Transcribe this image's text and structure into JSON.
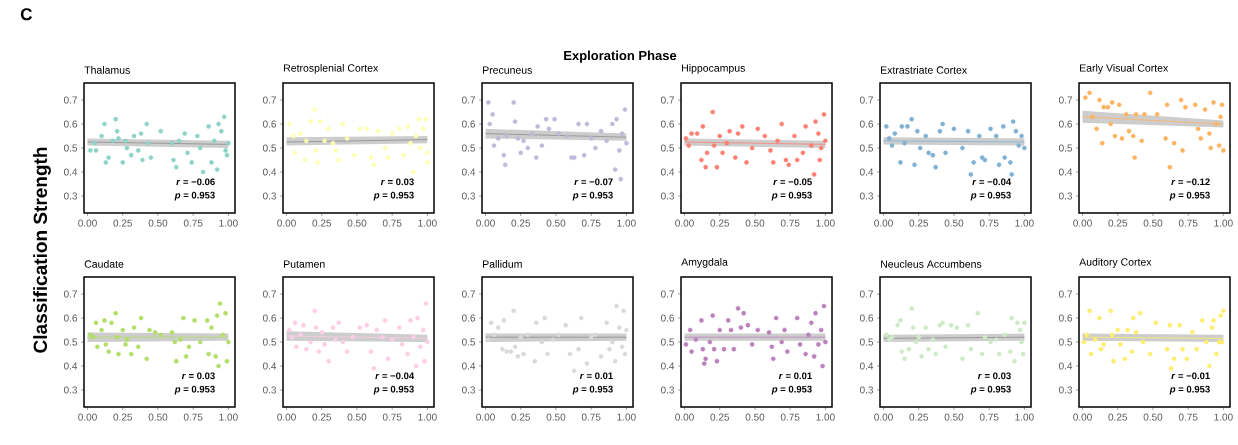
{
  "chart_data": [
    {
      "type": "scatter",
      "title": "Thalamus",
      "ylabel": "Classification Strength",
      "marker": "circle",
      "xlim": [
        -0.025,
        1.047
      ],
      "ylim": [
        0.229,
        0.771
      ],
      "xticks": [
        {
          "value": 0,
          "label": "0.00"
        },
        {
          "value": 0.25,
          "label": "0.25"
        },
        {
          "value": 0.5,
          "label": "0.50"
        },
        {
          "value": 0.75,
          "label": "0.75"
        },
        {
          "value": 1,
          "label": "1.00"
        }
      ],
      "yticks": [
        0.3,
        0.4,
        0.5,
        0.6,
        0.7
      ],
      "annotations": [
        "C",
        "Exploration Phase",
        "*r* = −0.06",
        "*p* = 0.953"
      ],
      "series": [
        {
          "color": "#8dd3c7",
          "x": [
            0.02,
            0.05,
            0.06,
            0.1,
            0.12,
            0.13,
            0.15,
            0.18,
            0.2,
            0.21,
            0.22,
            0.25,
            0.27,
            0.28,
            0.31,
            0.33,
            0.36,
            0.38,
            0.39,
            0.42,
            0.43,
            0.45,
            0.52,
            0.6,
            0.61,
            0.63,
            0.65,
            0.69,
            0.71,
            0.74,
            0.78,
            0.8,
            0.82,
            0.86,
            0.88,
            0.9,
            0.92,
            0.93,
            0.95,
            0.97,
            0.98,
            0.99,
            1.0
          ],
          "values": [
            0.49,
            0.52,
            0.49,
            0.55,
            0.6,
            0.44,
            0.46,
            0.53,
            0.62,
            0.57,
            0.54,
            0.44,
            0.53,
            0.5,
            0.47,
            0.55,
            0.49,
            0.56,
            0.45,
            0.6,
            0.52,
            0.46,
            0.57,
            0.52,
            0.45,
            0.42,
            0.53,
            0.56,
            0.48,
            0.44,
            0.55,
            0.5,
            0.4,
            0.59,
            0.44,
            0.53,
            0.41,
            0.6,
            0.57,
            0.63,
            0.49,
            0.47,
            0.52
          ]
        },
        {
          "type": "line",
          "marker": "none",
          "color": "#8c8c8c",
          "x": [
            0,
            1
          ],
          "values": [
            0.525,
            0.515
          ],
          "lower": [
            0.51,
            0.5
          ],
          "upper": [
            0.54,
            0.53
          ]
        }
      ]
    },
    {
      "type": "scatter",
      "title": "Retrosplenial Cortex",
      "marker": "circle",
      "xlim": [
        -0.025,
        1.047
      ],
      "ylim": [
        0.229,
        0.771
      ],
      "xticks": [
        {
          "value": 0,
          "label": "0.00"
        },
        {
          "value": 0.25,
          "label": "0.25"
        },
        {
          "value": 0.5,
          "label": "0.50"
        },
        {
          "value": 0.75,
          "label": "0.75"
        },
        {
          "value": 1,
          "label": "1.00"
        }
      ],
      "yticks": [
        0.3,
        0.4,
        0.5,
        0.6,
        0.7
      ],
      "annotations": [
        "*r* = 0.03",
        "*p* = 0.953"
      ],
      "series": [
        {
          "color": "#ffffb3",
          "x": [
            0.02,
            0.05,
            0.06,
            0.1,
            0.13,
            0.14,
            0.17,
            0.2,
            0.21,
            0.22,
            0.24,
            0.27,
            0.3,
            0.33,
            0.35,
            0.37,
            0.4,
            0.43,
            0.48,
            0.52,
            0.57,
            0.6,
            0.62,
            0.65,
            0.7,
            0.72,
            0.75,
            0.8,
            0.83,
            0.86,
            0.88,
            0.9,
            0.92,
            0.94,
            0.95,
            0.97,
            0.99,
            1.0,
            1.0
          ],
          "values": [
            0.6,
            0.55,
            0.48,
            0.56,
            0.45,
            0.53,
            0.61,
            0.66,
            0.49,
            0.44,
            0.61,
            0.53,
            0.58,
            0.52,
            0.49,
            0.45,
            0.6,
            0.54,
            0.47,
            0.58,
            0.58,
            0.46,
            0.43,
            0.57,
            0.5,
            0.46,
            0.56,
            0.58,
            0.47,
            0.59,
            0.52,
            0.4,
            0.55,
            0.62,
            0.5,
            0.58,
            0.62,
            0.48,
            0.44
          ]
        },
        {
          "type": "line",
          "marker": "none",
          "color": "#8c8c8c",
          "x": [
            0,
            1
          ],
          "values": [
            0.525,
            0.535
          ],
          "lower": [
            0.51,
            0.52
          ],
          "upper": [
            0.545,
            0.55
          ]
        }
      ]
    },
    {
      "type": "scatter",
      "title": "Precuneus",
      "marker": "circle",
      "xlim": [
        -0.025,
        1.047
      ],
      "ylim": [
        0.229,
        0.771
      ],
      "xticks": [
        {
          "value": 0,
          "label": "0.00"
        },
        {
          "value": 0.25,
          "label": "0.25"
        },
        {
          "value": 0.5,
          "label": "0.50"
        },
        {
          "value": 0.75,
          "label": "0.75"
        },
        {
          "value": 1,
          "label": "1.00"
        }
      ],
      "yticks": [
        0.3,
        0.4,
        0.5,
        0.6,
        0.7
      ],
      "annotations": [
        "*r* = −0.07",
        "*p* = 0.953"
      ],
      "series": [
        {
          "color": "#bebada",
          "x": [
            0.02,
            0.03,
            0.05,
            0.06,
            0.09,
            0.13,
            0.14,
            0.15,
            0.2,
            0.21,
            0.23,
            0.25,
            0.27,
            0.3,
            0.33,
            0.36,
            0.37,
            0.4,
            0.43,
            0.45,
            0.49,
            0.52,
            0.58,
            0.61,
            0.63,
            0.66,
            0.7,
            0.72,
            0.75,
            0.78,
            0.82,
            0.86,
            0.9,
            0.92,
            0.93,
            0.95,
            0.97,
            0.99,
            1.0,
            0.96
          ],
          "values": [
            0.69,
            0.6,
            0.64,
            0.51,
            0.54,
            0.47,
            0.43,
            0.55,
            0.69,
            0.61,
            0.54,
            0.48,
            0.53,
            0.5,
            0.56,
            0.46,
            0.59,
            0.51,
            0.62,
            0.58,
            0.62,
            0.56,
            0.55,
            0.46,
            0.46,
            0.6,
            0.47,
            0.6,
            0.54,
            0.5,
            0.57,
            0.53,
            0.6,
            0.41,
            0.62,
            0.49,
            0.56,
            0.66,
            0.52,
            0.37
          ]
        },
        {
          "type": "line",
          "marker": "none",
          "color": "#8c8c8c",
          "x": [
            0,
            1
          ],
          "values": [
            0.56,
            0.545
          ],
          "lower": [
            0.54,
            0.53
          ],
          "upper": [
            0.58,
            0.56
          ]
        }
      ]
    },
    {
      "type": "scatter",
      "title": "Hippocampus",
      "marker": "circle",
      "xlim": [
        -0.025,
        1.047
      ],
      "ylim": [
        0.229,
        0.771
      ],
      "xticks": [
        {
          "value": 0,
          "label": "0.00"
        },
        {
          "value": 0.25,
          "label": "0.25"
        },
        {
          "value": 0.5,
          "label": "0.50"
        },
        {
          "value": 0.75,
          "label": "0.75"
        },
        {
          "value": 1,
          "label": "1.00"
        }
      ],
      "yticks": [
        0.3,
        0.4,
        0.5,
        0.6,
        0.7
      ],
      "annotations": [
        "*r* = −0.05",
        "*p* = 0.953"
      ],
      "series": [
        {
          "color": "#fb8072",
          "x": [
            0.01,
            0.03,
            0.05,
            0.09,
            0.12,
            0.13,
            0.15,
            0.16,
            0.2,
            0.21,
            0.23,
            0.25,
            0.27,
            0.3,
            0.32,
            0.36,
            0.38,
            0.41,
            0.44,
            0.48,
            0.52,
            0.57,
            0.61,
            0.63,
            0.66,
            0.69,
            0.72,
            0.74,
            0.78,
            0.8,
            0.84,
            0.86,
            0.9,
            0.92,
            0.93,
            0.95,
            0.97,
            0.99,
            1.0,
            0.96
          ],
          "values": [
            0.54,
            0.51,
            0.56,
            0.56,
            0.45,
            0.59,
            0.42,
            0.48,
            0.65,
            0.51,
            0.42,
            0.55,
            0.48,
            0.52,
            0.57,
            0.46,
            0.56,
            0.59,
            0.44,
            0.5,
            0.58,
            0.55,
            0.49,
            0.44,
            0.53,
            0.6,
            0.45,
            0.43,
            0.55,
            0.45,
            0.48,
            0.59,
            0.51,
            0.39,
            0.61,
            0.56,
            0.5,
            0.64,
            0.53,
            0.45
          ]
        },
        {
          "type": "line",
          "marker": "none",
          "color": "#fb8072",
          "x": [
            0,
            1
          ],
          "values": [
            0.525,
            0.515
          ],
          "lower": [
            0.51,
            0.5
          ],
          "upper": [
            0.54,
            0.53
          ]
        }
      ]
    },
    {
      "type": "scatter",
      "title": "Extrastriate Cortex",
      "marker": "circle",
      "xlim": [
        -0.025,
        1.047
      ],
      "ylim": [
        0.229,
        0.771
      ],
      "xticks": [
        {
          "value": 0,
          "label": "0.00"
        },
        {
          "value": 0.25,
          "label": "0.25"
        },
        {
          "value": 0.5,
          "label": "0.50"
        },
        {
          "value": 0.75,
          "label": "0.75"
        },
        {
          "value": 1,
          "label": "1.00"
        }
      ],
      "yticks": [
        0.3,
        0.4,
        0.5,
        0.6,
        0.7
      ],
      "annotations": [
        "*r* = −0.04",
        "*p* = 0.953"
      ],
      "series": [
        {
          "color": "#80b1d3",
          "x": [
            0.02,
            0.04,
            0.06,
            0.08,
            0.12,
            0.13,
            0.15,
            0.17,
            0.2,
            0.22,
            0.24,
            0.26,
            0.3,
            0.32,
            0.35,
            0.37,
            0.4,
            0.42,
            0.44,
            0.5,
            0.56,
            0.6,
            0.62,
            0.64,
            0.68,
            0.7,
            0.72,
            0.76,
            0.8,
            0.82,
            0.85,
            0.86,
            0.9,
            0.91,
            0.92,
            0.94,
            0.96,
            0.98,
            1.0
          ],
          "values": [
            0.59,
            0.54,
            0.51,
            0.56,
            0.44,
            0.59,
            0.52,
            0.59,
            0.62,
            0.43,
            0.57,
            0.5,
            0.55,
            0.48,
            0.47,
            0.42,
            0.57,
            0.6,
            0.48,
            0.58,
            0.5,
            0.57,
            0.39,
            0.44,
            0.55,
            0.46,
            0.45,
            0.58,
            0.55,
            0.43,
            0.59,
            0.46,
            0.44,
            0.39,
            0.61,
            0.57,
            0.51,
            0.55,
            0.5
          ]
        },
        {
          "type": "line",
          "marker": "none",
          "color": "#80b1d3",
          "x": [
            0,
            1
          ],
          "values": [
            0.53,
            0.525
          ],
          "lower": [
            0.515,
            0.51
          ],
          "upper": [
            0.545,
            0.54
          ]
        }
      ]
    },
    {
      "type": "scatter",
      "title": "Early Visual Cortex",
      "marker": "circle",
      "xlim": [
        -0.025,
        1.047
      ],
      "ylim": [
        0.229,
        0.771
      ],
      "xticks": [
        {
          "value": 0,
          "label": "0.00"
        },
        {
          "value": 0.25,
          "label": "0.25"
        },
        {
          "value": 0.5,
          "label": "0.50"
        },
        {
          "value": 0.75,
          "label": "0.75"
        },
        {
          "value": 1,
          "label": "1.00"
        }
      ],
      "yticks": [
        0.3,
        0.4,
        0.5,
        0.6,
        0.7
      ],
      "annotations": [
        "*r* = −0.12",
        "*p* = 0.953"
      ],
      "series": [
        {
          "color": "#fdb462",
          "x": [
            0.02,
            0.05,
            0.07,
            0.1,
            0.12,
            0.14,
            0.15,
            0.18,
            0.2,
            0.21,
            0.23,
            0.26,
            0.28,
            0.31,
            0.33,
            0.36,
            0.37,
            0.38,
            0.42,
            0.44,
            0.48,
            0.53,
            0.59,
            0.6,
            0.62,
            0.65,
            0.7,
            0.71,
            0.73,
            0.8,
            0.82,
            0.84,
            0.87,
            0.9,
            0.91,
            0.93,
            0.95,
            0.97,
            0.99,
            1.0,
            0.98
          ],
          "values": [
            0.71,
            0.73,
            0.63,
            0.58,
            0.7,
            0.52,
            0.67,
            0.67,
            0.6,
            0.69,
            0.55,
            0.68,
            0.54,
            0.64,
            0.57,
            0.55,
            0.46,
            0.64,
            0.53,
            0.64,
            0.73,
            0.64,
            0.54,
            0.68,
            0.42,
            0.52,
            0.7,
            0.49,
            0.67,
            0.68,
            0.58,
            0.54,
            0.66,
            0.56,
            0.5,
            0.69,
            0.6,
            0.51,
            0.68,
            0.49,
            0.63
          ]
        },
        {
          "type": "line",
          "marker": "none",
          "color": "#fdb462",
          "x": [
            0,
            1
          ],
          "values": [
            0.63,
            0.6
          ],
          "lower": [
            0.605,
            0.585
          ],
          "upper": [
            0.655,
            0.615
          ]
        }
      ]
    },
    {
      "type": "scatter",
      "title": "Caudate",
      "marker": "circle",
      "xlim": [
        -0.025,
        1.047
      ],
      "ylim": [
        0.229,
        0.771
      ],
      "xticks": [
        {
          "value": 0,
          "label": "0.00"
        },
        {
          "value": 0.25,
          "label": "0.25"
        },
        {
          "value": 0.5,
          "label": "0.50"
        },
        {
          "value": 0.75,
          "label": "0.75"
        },
        {
          "value": 1,
          "label": "1.00"
        }
      ],
      "yticks": [
        0.3,
        0.4,
        0.5,
        0.6,
        0.7
      ],
      "annotations": [
        "*r* = 0.03",
        "*p* = 0.953"
      ],
      "series": [
        {
          "color": "#b3de69",
          "x": [
            0.02,
            0.04,
            0.06,
            0.07,
            0.1,
            0.12,
            0.13,
            0.15,
            0.17,
            0.2,
            0.21,
            0.22,
            0.25,
            0.27,
            0.28,
            0.31,
            0.33,
            0.36,
            0.38,
            0.42,
            0.44,
            0.48,
            0.52,
            0.6,
            0.62,
            0.63,
            0.66,
            0.68,
            0.7,
            0.72,
            0.76,
            0.8,
            0.85,
            0.86,
            0.88,
            0.91,
            0.92,
            0.93,
            0.94,
            0.96,
            0.98,
            0.99,
            1.0
          ],
          "values": [
            0.53,
            0.52,
            0.58,
            0.48,
            0.55,
            0.59,
            0.49,
            0.46,
            0.58,
            0.62,
            0.52,
            0.45,
            0.55,
            0.49,
            0.51,
            0.45,
            0.56,
            0.48,
            0.6,
            0.43,
            0.55,
            0.54,
            0.53,
            0.54,
            0.5,
            0.42,
            0.51,
            0.6,
            0.44,
            0.48,
            0.59,
            0.5,
            0.59,
            0.45,
            0.56,
            0.44,
            0.61,
            0.4,
            0.66,
            0.53,
            0.62,
            0.42,
            0.5
          ]
        },
        {
          "type": "line",
          "marker": "none",
          "color": "#b3de69",
          "x": [
            0,
            1
          ],
          "values": [
            0.52,
            0.52
          ],
          "lower": [
            0.5,
            0.505
          ],
          "upper": [
            0.54,
            0.535
          ]
        }
      ]
    },
    {
      "type": "scatter",
      "title": "Putamen",
      "marker": "circle",
      "xlim": [
        -0.025,
        1.047
      ],
      "ylim": [
        0.229,
        0.771
      ],
      "xticks": [
        {
          "value": 0,
          "label": "0.00"
        },
        {
          "value": 0.25,
          "label": "0.25"
        },
        {
          "value": 0.5,
          "label": "0.50"
        },
        {
          "value": 0.75,
          "label": "0.75"
        },
        {
          "value": 1,
          "label": "1.00"
        }
      ],
      "yticks": [
        0.3,
        0.4,
        0.5,
        0.6,
        0.7
      ],
      "annotations": [
        "*r* = −0.04",
        "*p* = 0.953"
      ],
      "series": [
        {
          "color": "#fccde5",
          "x": [
            0.02,
            0.04,
            0.06,
            0.07,
            0.1,
            0.12,
            0.14,
            0.17,
            0.2,
            0.21,
            0.23,
            0.25,
            0.27,
            0.3,
            0.33,
            0.35,
            0.37,
            0.4,
            0.43,
            0.47,
            0.52,
            0.57,
            0.6,
            0.62,
            0.64,
            0.68,
            0.7,
            0.72,
            0.75,
            0.8,
            0.82,
            0.86,
            0.88,
            0.9,
            0.92,
            0.93,
            0.95,
            0.97,
            0.99,
            1.0,
            0.98
          ],
          "values": [
            0.55,
            0.52,
            0.58,
            0.48,
            0.53,
            0.57,
            0.47,
            0.5,
            0.63,
            0.56,
            0.46,
            0.54,
            0.49,
            0.42,
            0.56,
            0.51,
            0.58,
            0.5,
            0.46,
            0.52,
            0.56,
            0.57,
            0.46,
            0.39,
            0.55,
            0.52,
            0.59,
            0.43,
            0.51,
            0.56,
            0.49,
            0.45,
            0.59,
            0.52,
            0.4,
            0.6,
            0.48,
            0.55,
            0.66,
            0.5,
            0.42
          ]
        },
        {
          "type": "line",
          "marker": "none",
          "color": "#fccde5",
          "x": [
            0,
            1
          ],
          "values": [
            0.525,
            0.515
          ],
          "lower": [
            0.505,
            0.5
          ],
          "upper": [
            0.545,
            0.53
          ]
        }
      ]
    },
    {
      "type": "scatter",
      "title": "Pallidum",
      "marker": "circle",
      "xlim": [
        -0.025,
        1.047
      ],
      "ylim": [
        0.229,
        0.771
      ],
      "xticks": [
        {
          "value": 0,
          "label": "0.00"
        },
        {
          "value": 0.25,
          "label": "0.25"
        },
        {
          "value": 0.5,
          "label": "0.50"
        },
        {
          "value": 0.75,
          "label": "0.75"
        },
        {
          "value": 1,
          "label": "1.00"
        }
      ],
      "yticks": [
        0.3,
        0.4,
        0.5,
        0.6,
        0.7
      ],
      "annotations": [
        "*r* = 0.01",
        "*p* = 0.953"
      ],
      "series": [
        {
          "color": "#d9d9d9",
          "x": [
            0.02,
            0.04,
            0.06,
            0.09,
            0.12,
            0.13,
            0.15,
            0.18,
            0.2,
            0.21,
            0.23,
            0.25,
            0.27,
            0.3,
            0.35,
            0.36,
            0.4,
            0.42,
            0.44,
            0.48,
            0.52,
            0.57,
            0.6,
            0.63,
            0.66,
            0.68,
            0.72,
            0.75,
            0.78,
            0.82,
            0.86,
            0.88,
            0.9,
            0.92,
            0.93,
            0.95,
            0.97,
            0.98,
            1.0,
            0.99
          ],
          "values": [
            0.51,
            0.58,
            0.53,
            0.56,
            0.47,
            0.59,
            0.46,
            0.46,
            0.63,
            0.48,
            0.44,
            0.52,
            0.45,
            0.53,
            0.42,
            0.58,
            0.5,
            0.6,
            0.45,
            0.51,
            0.53,
            0.57,
            0.45,
            0.38,
            0.47,
            0.6,
            0.41,
            0.52,
            0.53,
            0.44,
            0.58,
            0.47,
            0.5,
            0.42,
            0.65,
            0.56,
            0.48,
            0.63,
            0.55,
            0.45
          ]
        },
        {
          "type": "line",
          "marker": "none",
          "color": "#8c8c8c",
          "x": [
            0,
            1
          ],
          "values": [
            0.52,
            0.52
          ],
          "lower": [
            0.5,
            0.505
          ],
          "upper": [
            0.535,
            0.535
          ]
        }
      ]
    },
    {
      "type": "scatter",
      "title": "Amygdala",
      "marker": "circle",
      "xlim": [
        -0.025,
        1.047
      ],
      "ylim": [
        0.229,
        0.771
      ],
      "xticks": [
        {
          "value": 0,
          "label": "0.00"
        },
        {
          "value": 0.25,
          "label": "0.25"
        },
        {
          "value": 0.5,
          "label": "0.50"
        },
        {
          "value": 0.75,
          "label": "0.75"
        },
        {
          "value": 1,
          "label": "1.00"
        }
      ],
      "yticks": [
        0.3,
        0.4,
        0.5,
        0.6,
        0.7
      ],
      "annotations": [
        "*r* = 0.01",
        "*p* = 0.953"
      ],
      "series": [
        {
          "color": "#bc80bd",
          "x": [
            0.01,
            0.04,
            0.05,
            0.08,
            0.12,
            0.13,
            0.14,
            0.15,
            0.18,
            0.2,
            0.21,
            0.23,
            0.25,
            0.28,
            0.31,
            0.33,
            0.35,
            0.38,
            0.4,
            0.42,
            0.45,
            0.48,
            0.52,
            0.6,
            0.62,
            0.63,
            0.65,
            0.69,
            0.71,
            0.73,
            0.8,
            0.82,
            0.86,
            0.88,
            0.9,
            0.92,
            0.93,
            0.95,
            0.97,
            0.99,
            1.0,
            0.98
          ],
          "values": [
            0.49,
            0.55,
            0.46,
            0.51,
            0.59,
            0.47,
            0.41,
            0.43,
            0.5,
            0.61,
            0.47,
            0.42,
            0.55,
            0.47,
            0.59,
            0.55,
            0.47,
            0.64,
            0.56,
            0.62,
            0.57,
            0.49,
            0.55,
            0.54,
            0.48,
            0.43,
            0.6,
            0.5,
            0.55,
            0.46,
            0.6,
            0.49,
            0.45,
            0.53,
            0.58,
            0.44,
            0.62,
            0.49,
            0.55,
            0.65,
            0.5,
            0.4
          ]
        },
        {
          "type": "line",
          "marker": "none",
          "color": "#bc80bd",
          "x": [
            0,
            1
          ],
          "values": [
            0.52,
            0.52
          ],
          "lower": [
            0.505,
            0.505
          ],
          "upper": [
            0.535,
            0.535
          ]
        }
      ]
    },
    {
      "type": "scatter",
      "title": "Neucleus Accumbens",
      "marker": "circle",
      "xlim": [
        -0.025,
        1.047
      ],
      "ylim": [
        0.229,
        0.771
      ],
      "xticks": [
        {
          "value": 0,
          "label": "0.00"
        },
        {
          "value": 0.25,
          "label": "0.25"
        },
        {
          "value": 0.5,
          "label": "0.50"
        },
        {
          "value": 0.75,
          "label": "0.75"
        },
        {
          "value": 1,
          "label": "1.00"
        }
      ],
      "yticks": [
        0.3,
        0.4,
        0.5,
        0.6,
        0.7
      ],
      "annotations": [
        "*r* = 0.03",
        "*p* = 0.953"
      ],
      "series": [
        {
          "color": "#ccebc5",
          "x": [
            0.02,
            0.04,
            0.06,
            0.1,
            0.12,
            0.13,
            0.15,
            0.18,
            0.2,
            0.21,
            0.23,
            0.25,
            0.27,
            0.3,
            0.32,
            0.35,
            0.37,
            0.4,
            0.42,
            0.44,
            0.48,
            0.52,
            0.56,
            0.6,
            0.62,
            0.67,
            0.7,
            0.72,
            0.76,
            0.8,
            0.82,
            0.86,
            0.9,
            0.91,
            0.93,
            0.95,
            0.97,
            0.99,
            1.0,
            0.98
          ],
          "values": [
            0.53,
            0.51,
            0.52,
            0.57,
            0.59,
            0.46,
            0.43,
            0.47,
            0.64,
            0.56,
            0.5,
            0.52,
            0.44,
            0.56,
            0.47,
            0.51,
            0.45,
            0.57,
            0.58,
            0.48,
            0.57,
            0.56,
            0.43,
            0.57,
            0.47,
            0.62,
            0.45,
            0.52,
            0.5,
            0.51,
            0.45,
            0.53,
            0.46,
            0.6,
            0.42,
            0.58,
            0.55,
            0.45,
            0.58,
            0.5
          ]
        },
        {
          "type": "line",
          "marker": "none",
          "color": "#8c8c8c",
          "x": [
            0,
            1
          ],
          "values": [
            0.515,
            0.52
          ],
          "lower": [
            0.5,
            0.505
          ],
          "upper": [
            0.53,
            0.535
          ]
        }
      ]
    },
    {
      "type": "scatter",
      "title": "Auditory Cortex",
      "marker": "circle",
      "xlim": [
        -0.025,
        1.047
      ],
      "ylim": [
        0.229,
        0.771
      ],
      "xticks": [
        {
          "value": 0,
          "label": "0.00"
        },
        {
          "value": 0.25,
          "label": "0.25"
        },
        {
          "value": 0.5,
          "label": "0.50"
        },
        {
          "value": 0.75,
          "label": "0.75"
        },
        {
          "value": 1,
          "label": "1.00"
        }
      ],
      "yticks": [
        0.3,
        0.4,
        0.5,
        0.6,
        0.7
      ],
      "annotations": [
        "*r* = −0.01",
        "*p* = 0.953"
      ],
      "series": [
        {
          "color": "#ffed6f",
          "x": [
            0.01,
            0.03,
            0.05,
            0.06,
            0.09,
            0.12,
            0.13,
            0.15,
            0.2,
            0.21,
            0.22,
            0.25,
            0.27,
            0.3,
            0.32,
            0.35,
            0.36,
            0.38,
            0.41,
            0.43,
            0.48,
            0.52,
            0.6,
            0.62,
            0.63,
            0.65,
            0.69,
            0.71,
            0.74,
            0.78,
            0.81,
            0.85,
            0.88,
            0.9,
            0.92,
            0.93,
            0.95,
            0.97,
            0.98,
            1.0,
            0.99
          ],
          "values": [
            0.5,
            0.53,
            0.63,
            0.45,
            0.51,
            0.6,
            0.47,
            0.49,
            0.63,
            0.53,
            0.42,
            0.55,
            0.49,
            0.43,
            0.55,
            0.46,
            0.6,
            0.54,
            0.62,
            0.5,
            0.45,
            0.58,
            0.47,
            0.57,
            0.39,
            0.43,
            0.57,
            0.47,
            0.43,
            0.54,
            0.47,
            0.59,
            0.5,
            0.4,
            0.56,
            0.59,
            0.45,
            0.5,
            0.61,
            0.63,
            0.5
          ]
        },
        {
          "type": "line",
          "marker": "none",
          "color": "#ffed6f",
          "x": [
            0,
            1
          ],
          "values": [
            0.52,
            0.515
          ],
          "lower": [
            0.505,
            0.5
          ],
          "upper": [
            0.535,
            0.53
          ]
        }
      ]
    }
  ]
}
